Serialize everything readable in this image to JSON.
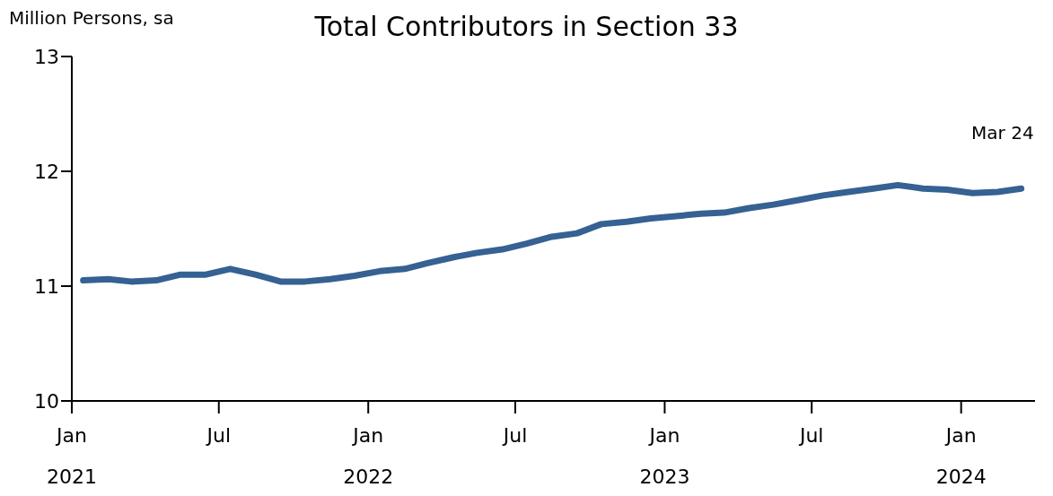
{
  "chart_data": {
    "type": "line",
    "title": "Total Contributors in Section 33",
    "ylabel": "Million Persons, sa",
    "x": [
      "2021-01-15",
      "2021-02-15",
      "2021-03-15",
      "2021-04-15",
      "2021-05-15",
      "2021-06-15",
      "2021-07-15",
      "2021-08-15",
      "2021-09-15",
      "2021-10-15",
      "2021-11-15",
      "2021-12-15",
      "2022-01-15",
      "2022-02-15",
      "2022-03-15",
      "2022-04-15",
      "2022-05-15",
      "2022-06-15",
      "2022-07-15",
      "2022-08-15",
      "2022-09-15",
      "2022-10-15",
      "2022-11-15",
      "2022-12-15",
      "2023-01-15",
      "2023-02-15",
      "2023-03-15",
      "2023-04-15",
      "2023-05-15",
      "2023-06-15",
      "2023-07-15",
      "2023-08-15",
      "2023-09-15",
      "2023-10-15",
      "2023-11-15",
      "2023-12-15",
      "2024-01-15",
      "2024-02-15",
      "2024-03-15"
    ],
    "series": [
      {
        "color": "#356193",
        "values": [
          11.05,
          11.06,
          11.04,
          11.05,
          11.1,
          11.1,
          11.15,
          11.1,
          11.04,
          11.04,
          11.06,
          11.09,
          11.13,
          11.15,
          11.2,
          11.25,
          11.29,
          11.32,
          11.37,
          11.43,
          11.46,
          11.54,
          11.56,
          11.59,
          11.61,
          11.63,
          11.64,
          11.68,
          11.71,
          11.75,
          11.79,
          11.82,
          11.85,
          11.88,
          11.85,
          11.84,
          11.81,
          11.82,
          11.85
        ]
      }
    ],
    "xlim": [
      "2021-01-01",
      "2024-04-01"
    ],
    "xticks": [
      {
        "value": "2021-01-01",
        "label": "Jan 2021"
      },
      {
        "value": "2021-07-01",
        "label": "Jul"
      },
      {
        "value": "2022-01-01",
        "label": "Jan 2022"
      },
      {
        "value": "2022-07-01",
        "label": "Jul"
      },
      {
        "value": "2023-01-01",
        "label": "Jan 2023"
      },
      {
        "value": "2023-07-01",
        "label": "Jul"
      },
      {
        "value": "2024-01-01",
        "label": "Jan 2024"
      }
    ],
    "ylim": [
      10,
      13
    ],
    "yticks": [
      10,
      11,
      12,
      13
    ],
    "annotations": [
      {
        "text": "Mar 24",
        "x": "2024-03-15",
        "y": 11.85
      }
    ],
    "grid": false,
    "legend": false,
    "marker": "none",
    "line_style": "solid"
  }
}
